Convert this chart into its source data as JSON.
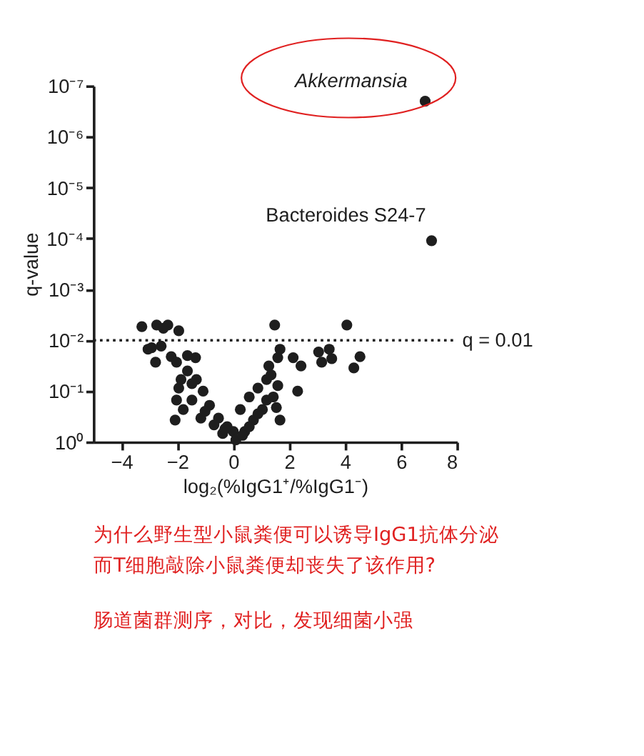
{
  "chart_data": {
    "type": "scatter",
    "xlabel": "log₂(%IgG1⁺/%IgG1⁻)",
    "ylabel": "q-value",
    "log": "y",
    "grid": false,
    "marker": "circle",
    "xlim": [
      -5,
      8
    ],
    "xticks": [
      -4,
      -2,
      0,
      2,
      4,
      6,
      8
    ],
    "ylim": [
      1,
      1e-07
    ],
    "yticks": [
      {
        "value": 1,
        "label": "10⁰"
      },
      {
        "value": 0.1,
        "label": "10⁻¹"
      },
      {
        "value": 0.01,
        "label": "10⁻²"
      },
      {
        "value": 0.001,
        "label": "10⁻³"
      },
      {
        "value": 0.0001,
        "label": "10⁻⁴"
      },
      {
        "value": 1e-05,
        "label": "10⁻⁵"
      },
      {
        "value": 1e-06,
        "label": "10⁻⁶"
      },
      {
        "value": 1e-07,
        "label": "10⁻⁷"
      }
    ],
    "series": [
      {
        "color": "#1e1e1e",
        "x": [
          6.86,
          7.09,
          -3.27,
          -2.74,
          -2.34,
          -1.95,
          -2.5,
          1.48,
          4.06,
          -3.05,
          -2.92,
          -2.58,
          -2.78,
          -2.22,
          -2.03,
          -1.64,
          -1.35,
          -2.08,
          1.67,
          1.59,
          2.14,
          2.42,
          2.3,
          3.05,
          3.43,
          3.16,
          3.52,
          4.53,
          4.31,
          1.67,
          1.54,
          1.27,
          1.19,
          0.88,
          0.57,
          0.25,
          0,
          -0.22,
          -0.53,
          -0.85,
          -1.08,
          -1.32,
          -1.64,
          -1.95,
          -1.79,
          -1.48,
          -1.16,
          -0.69,
          -0.38,
          0.41,
          0.72,
          1.04,
          1.19,
          1.43,
          1.59,
          1.35,
          -2.03,
          -1.87,
          -1.48,
          -1.01,
          0.09,
          0.33,
          -0.3,
          0.57,
          0.88
        ],
        "values": [
          2e-07,
          0.00011,
          0.0054,
          0.005,
          0.005,
          0.0065,
          0.0058,
          0.005,
          0.005,
          0.015,
          0.014,
          0.013,
          0.027,
          0.021,
          0.027,
          0.02,
          0.022,
          0.37,
          0.015,
          0.022,
          0.022,
          0.032,
          0.1,
          0.017,
          0.015,
          0.027,
          0.023,
          0.021,
          0.035,
          0.37,
          0.21,
          0.032,
          0.059,
          0.087,
          0.13,
          0.23,
          0.62,
          0.5,
          0.34,
          0.19,
          0.1,
          0.059,
          0.04,
          0.087,
          0.23,
          0.15,
          0.34,
          0.46,
          0.68,
          0.62,
          0.37,
          0.23,
          0.15,
          0.13,
          0.078,
          0.048,
          0.15,
          0.059,
          0.071,
          0.25,
          0.91,
          0.74,
          0.55,
          0.5,
          0.28
        ]
      }
    ],
    "ref_lines": [
      {
        "axis": "y",
        "value": 0.01,
        "label": "q = 0.01",
        "line_style": "dotted",
        "color": "#1e1e1e"
      }
    ],
    "annotations": [
      {
        "text": "Akkermansia",
        "x": 6.86,
        "y": 2e-07
      },
      {
        "text": "Bacteroides S24-7",
        "x": 7.09,
        "y": 0.00011
      },
      "为什么野生型小鼠粪便可以诱导IgG1抗体分泌",
      "而T细胞敲除小鼠粪便却丧失了该作用?",
      "肠道菌群测序，对比，发现细菌小强"
    ]
  }
}
